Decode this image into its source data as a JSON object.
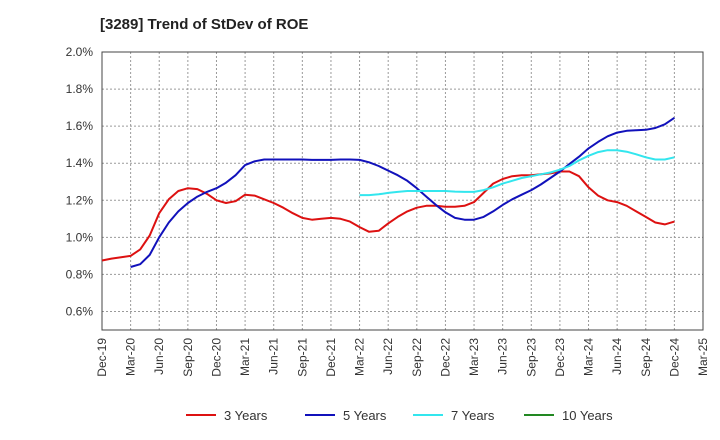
{
  "chart_data": {
    "type": "line",
    "title": "[3289]  Trend of StDev of ROE",
    "xlabel": "",
    "ylabel": "",
    "x_ticks": [
      "Dec-19",
      "Mar-20",
      "Jun-20",
      "Sep-20",
      "Dec-20",
      "Mar-21",
      "Jun-21",
      "Sep-21",
      "Dec-21",
      "Mar-22",
      "Jun-22",
      "Sep-22",
      "Dec-22",
      "Mar-23",
      "Jun-23",
      "Sep-23",
      "Dec-23",
      "Mar-24",
      "Jun-24",
      "Sep-24",
      "Dec-24",
      "Mar-25"
    ],
    "y_ticks": [
      "0.6%",
      "0.8%",
      "1.0%",
      "1.2%",
      "1.4%",
      "1.6%",
      "1.8%",
      "2.0%"
    ],
    "ylim": [
      0.5,
      2.0
    ],
    "grid": true,
    "legend_position": "bottom",
    "series": [
      {
        "name": "3 Years",
        "color": "#dd1111",
        "points": [
          [
            "Dec-19",
            0.875
          ],
          [
            "Jan-20",
            0.885
          ],
          [
            "Feb-20",
            0.893
          ],
          [
            "Mar-20",
            0.9
          ],
          [
            "Apr-20",
            0.935
          ],
          [
            "May-20",
            1.01
          ],
          [
            "Jun-20",
            1.13
          ],
          [
            "Jul-20",
            1.205
          ],
          [
            "Aug-20",
            1.25
          ],
          [
            "Sep-20",
            1.265
          ],
          [
            "Oct-20",
            1.26
          ],
          [
            "Nov-20",
            1.235
          ],
          [
            "Dec-20",
            1.2
          ],
          [
            "Jan-21",
            1.185
          ],
          [
            "Feb-21",
            1.195
          ],
          [
            "Mar-21",
            1.23
          ],
          [
            "Apr-21",
            1.225
          ],
          [
            "May-21",
            1.205
          ],
          [
            "Jun-21",
            1.185
          ],
          [
            "Jul-21",
            1.16
          ],
          [
            "Aug-21",
            1.13
          ],
          [
            "Sep-21",
            1.105
          ],
          [
            "Oct-21",
            1.095
          ],
          [
            "Nov-21",
            1.1
          ],
          [
            "Dec-21",
            1.105
          ],
          [
            "Jan-22",
            1.1
          ],
          [
            "Feb-22",
            1.085
          ],
          [
            "Mar-22",
            1.055
          ],
          [
            "Apr-22",
            1.03
          ],
          [
            "May-22",
            1.035
          ],
          [
            "Jun-22",
            1.075
          ],
          [
            "Jul-22",
            1.11
          ],
          [
            "Aug-22",
            1.14
          ],
          [
            "Sep-22",
            1.16
          ],
          [
            "Oct-22",
            1.17
          ],
          [
            "Nov-22",
            1.17
          ],
          [
            "Dec-22",
            1.165
          ],
          [
            "Jan-23",
            1.165
          ],
          [
            "Feb-23",
            1.17
          ],
          [
            "Mar-23",
            1.19
          ],
          [
            "Apr-23",
            1.24
          ],
          [
            "May-23",
            1.29
          ],
          [
            "Jun-23",
            1.315
          ],
          [
            "Jul-23",
            1.33
          ],
          [
            "Aug-23",
            1.335
          ],
          [
            "Sep-23",
            1.335
          ],
          [
            "Oct-23",
            1.34
          ],
          [
            "Nov-23",
            1.345
          ],
          [
            "Dec-23",
            1.355
          ],
          [
            "Jan-24",
            1.355
          ],
          [
            "Feb-24",
            1.33
          ],
          [
            "Mar-24",
            1.27
          ],
          [
            "Apr-24",
            1.225
          ],
          [
            "May-24",
            1.2
          ],
          [
            "Jun-24",
            1.19
          ],
          [
            "Jul-24",
            1.17
          ],
          [
            "Aug-24",
            1.14
          ],
          [
            "Sep-24",
            1.11
          ],
          [
            "Oct-24",
            1.08
          ],
          [
            "Nov-24",
            1.07
          ],
          [
            "Dec-24",
            1.085
          ]
        ]
      },
      {
        "name": "5 Years",
        "color": "#1111bb",
        "points": [
          [
            "Mar-20",
            0.84
          ],
          [
            "Apr-20",
            0.855
          ],
          [
            "May-20",
            0.905
          ],
          [
            "Jun-20",
            1.0
          ],
          [
            "Jul-20",
            1.08
          ],
          [
            "Aug-20",
            1.14
          ],
          [
            "Sep-20",
            1.185
          ],
          [
            "Oct-20",
            1.22
          ],
          [
            "Nov-20",
            1.245
          ],
          [
            "Dec-20",
            1.265
          ],
          [
            "Jan-21",
            1.295
          ],
          [
            "Feb-21",
            1.335
          ],
          [
            "Mar-21",
            1.39
          ],
          [
            "Apr-21",
            1.41
          ],
          [
            "May-21",
            1.42
          ],
          [
            "Jun-21",
            1.42
          ],
          [
            "Jul-21",
            1.42
          ],
          [
            "Aug-21",
            1.42
          ],
          [
            "Sep-21",
            1.42
          ],
          [
            "Oct-21",
            1.418
          ],
          [
            "Nov-21",
            1.418
          ],
          [
            "Dec-21",
            1.418
          ],
          [
            "Jan-22",
            1.42
          ],
          [
            "Feb-22",
            1.42
          ],
          [
            "Mar-22",
            1.418
          ],
          [
            "Apr-22",
            1.405
          ],
          [
            "May-22",
            1.385
          ],
          [
            "Jun-22",
            1.36
          ],
          [
            "Jul-22",
            1.335
          ],
          [
            "Aug-22",
            1.305
          ],
          [
            "Sep-22",
            1.265
          ],
          [
            "Oct-22",
            1.22
          ],
          [
            "Nov-22",
            1.175
          ],
          [
            "Dec-22",
            1.135
          ],
          [
            "Jan-23",
            1.105
          ],
          [
            "Feb-23",
            1.095
          ],
          [
            "Mar-23",
            1.095
          ],
          [
            "Apr-23",
            1.11
          ],
          [
            "May-23",
            1.14
          ],
          [
            "Jun-23",
            1.175
          ],
          [
            "Jul-23",
            1.205
          ],
          [
            "Aug-23",
            1.23
          ],
          [
            "Sep-23",
            1.255
          ],
          [
            "Oct-23",
            1.285
          ],
          [
            "Nov-23",
            1.32
          ],
          [
            "Dec-23",
            1.355
          ],
          [
            "Jan-24",
            1.395
          ],
          [
            "Feb-24",
            1.435
          ],
          [
            "Mar-24",
            1.48
          ],
          [
            "Apr-24",
            1.515
          ],
          [
            "May-24",
            1.545
          ],
          [
            "Jun-24",
            1.565
          ],
          [
            "Jul-24",
            1.575
          ],
          [
            "Aug-24",
            1.578
          ],
          [
            "Sep-24",
            1.58
          ],
          [
            "Oct-24",
            1.59
          ],
          [
            "Nov-24",
            1.61
          ],
          [
            "Dec-24",
            1.645
          ]
        ]
      },
      {
        "name": "7 Years",
        "color": "#33e6ee",
        "points": [
          [
            "Mar-22",
            1.228
          ],
          [
            "Apr-22",
            1.228
          ],
          [
            "May-22",
            1.232
          ],
          [
            "Jun-22",
            1.24
          ],
          [
            "Jul-22",
            1.245
          ],
          [
            "Aug-22",
            1.25
          ],
          [
            "Sep-22",
            1.25
          ],
          [
            "Oct-22",
            1.25
          ],
          [
            "Nov-22",
            1.25
          ],
          [
            "Dec-22",
            1.25
          ],
          [
            "Jan-23",
            1.247
          ],
          [
            "Feb-23",
            1.245
          ],
          [
            "Mar-23",
            1.245
          ],
          [
            "Apr-23",
            1.255
          ],
          [
            "May-23",
            1.27
          ],
          [
            "Jun-23",
            1.29
          ],
          [
            "Jul-23",
            1.305
          ],
          [
            "Aug-23",
            1.32
          ],
          [
            "Sep-23",
            1.33
          ],
          [
            "Oct-23",
            1.34
          ],
          [
            "Nov-23",
            1.35
          ],
          [
            "Dec-23",
            1.365
          ],
          [
            "Jan-24",
            1.385
          ],
          [
            "Feb-24",
            1.415
          ],
          [
            "Mar-24",
            1.44
          ],
          [
            "Apr-24",
            1.46
          ],
          [
            "May-24",
            1.47
          ],
          [
            "Jun-24",
            1.47
          ],
          [
            "Jul-24",
            1.462
          ],
          [
            "Aug-24",
            1.448
          ],
          [
            "Sep-24",
            1.432
          ],
          [
            "Oct-24",
            1.42
          ],
          [
            "Nov-24",
            1.42
          ],
          [
            "Dec-24",
            1.432
          ]
        ]
      },
      {
        "name": "10 Years",
        "color": "#228822",
        "points": []
      }
    ]
  }
}
